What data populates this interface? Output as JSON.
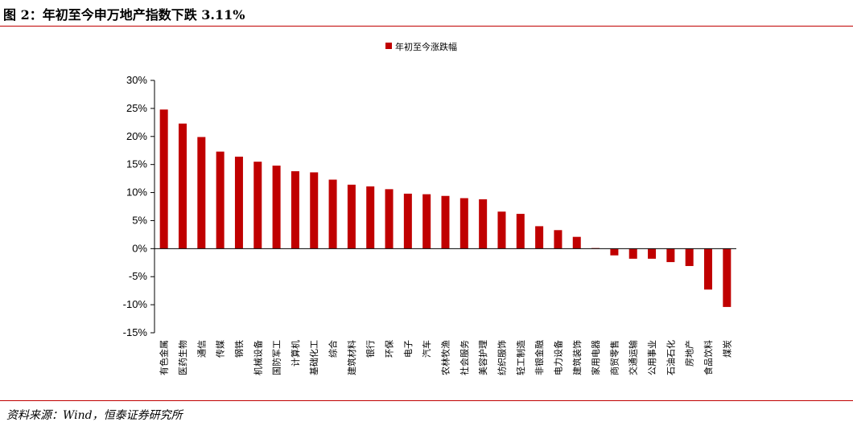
{
  "header": {
    "title": "图 2：年初至今申万地产指数下跌 3.11%"
  },
  "footer": {
    "source": "资料来源：Wind，恒泰证券研究所"
  },
  "colors": {
    "accent": "#c00000",
    "bar": "#c00000",
    "axis": "#000000"
  },
  "chart_data": {
    "type": "bar",
    "title": "",
    "xlabel": "",
    "ylabel": "",
    "ylim": [
      -15,
      30
    ],
    "yticks": [
      30,
      25,
      20,
      15,
      10,
      5,
      0,
      -5,
      -10,
      -15
    ],
    "ytick_labels": [
      "30%",
      "25%",
      "20%",
      "15%",
      "10%",
      "5%",
      "0%",
      "-5%",
      "-10%",
      "-15%"
    ],
    "legend": {
      "position": "top-center"
    },
    "grid": false,
    "categories": [
      "有色金属",
      "医药生物",
      "通信",
      "传媒",
      "钢铁",
      "机械设备",
      "国防军工",
      "计算机",
      "基础化工",
      "综合",
      "建筑材料",
      "银行",
      "环保",
      "电子",
      "汽车",
      "农林牧渔",
      "社会服务",
      "美容护理",
      "纺织服饰",
      "轻工制造",
      "非银金融",
      "电力设备",
      "建筑装饰",
      "家用电器",
      "商贸零售",
      "交通运输",
      "公用事业",
      "石油石化",
      "房地产",
      "食品饮料",
      "煤炭"
    ],
    "series": [
      {
        "name": "年初至今涨跌幅",
        "values": [
          24.8,
          22.3,
          19.9,
          17.3,
          16.4,
          15.5,
          14.8,
          13.8,
          13.6,
          12.3,
          11.4,
          11.1,
          10.6,
          9.8,
          9.7,
          9.4,
          9.0,
          8.8,
          6.6,
          6.2,
          4.0,
          3.3,
          2.1,
          0.1,
          -1.2,
          -1.8,
          -1.8,
          -2.4,
          -3.1,
          -7.3,
          -10.4
        ]
      }
    ]
  }
}
